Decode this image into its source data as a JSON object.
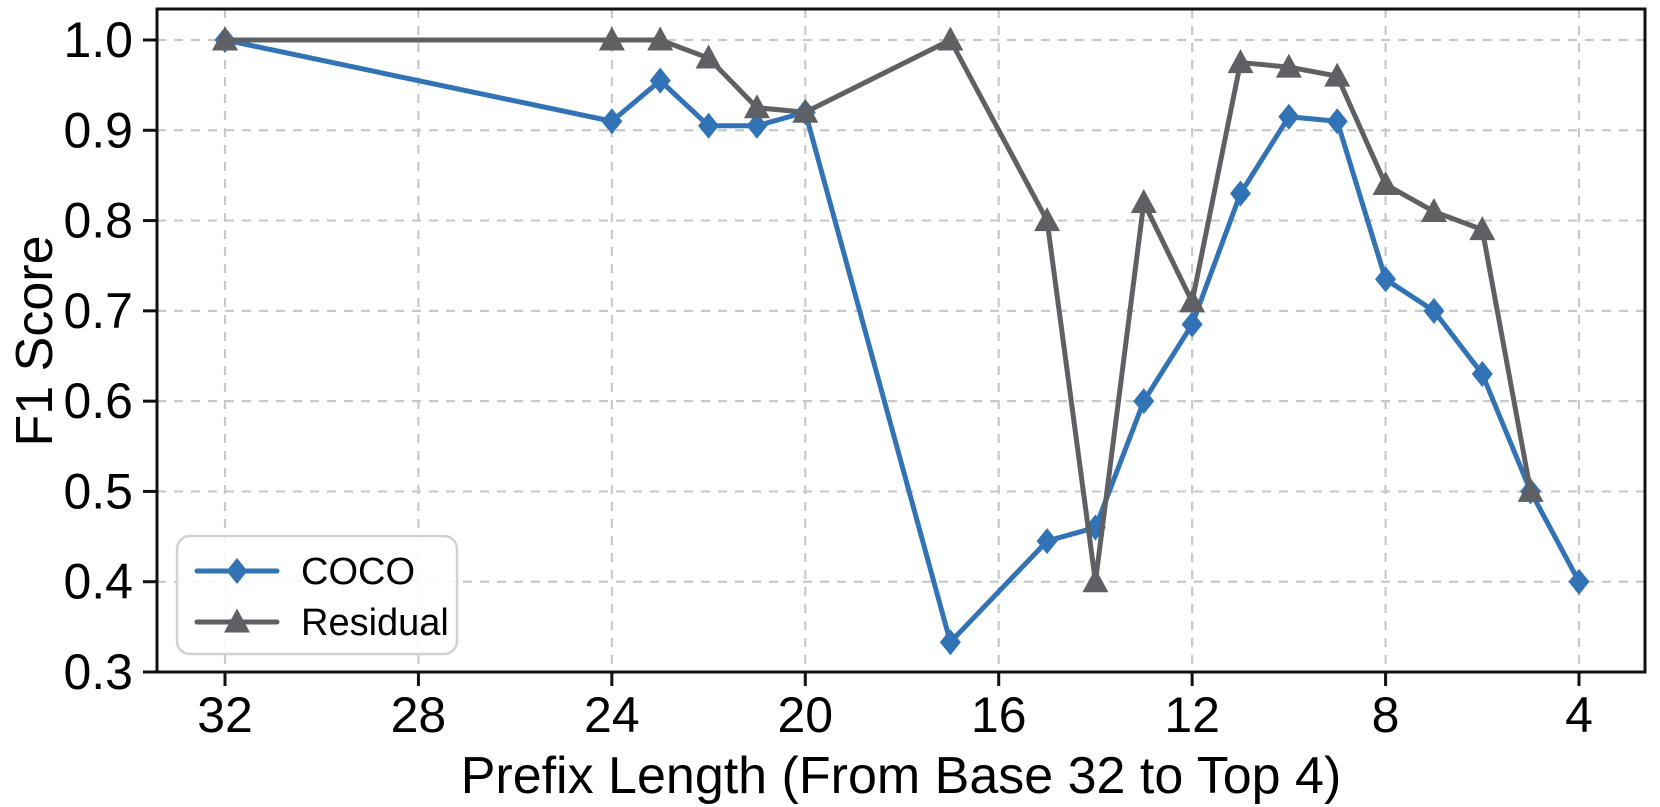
{
  "figure": {
    "xlabel": "Prefix Length (From Base 32 to Top 4)",
    "ylabel": "F1 Score",
    "background": "#ffffff"
  },
  "colors": {
    "coco_blue": "#3173b5",
    "residual_gray": "#5f6063",
    "grid": "#c9c9c9",
    "axis": "#111111",
    "legend_border": "#d2d2d2",
    "text": "#000000"
  },
  "legend": {
    "position": "lower-left",
    "items": [
      {
        "label": "COCO",
        "series": "COCO"
      },
      {
        "label": "Residual",
        "series": "Residual"
      }
    ]
  },
  "chart_data": {
    "type": "line",
    "title": "",
    "xlabel": "Prefix Length (From Base 32 to Top 4)",
    "ylabel": "F1 Score",
    "x_axis_reversed": true,
    "xlim": [
      33.4,
      2.7
    ],
    "ylim": [
      0.3,
      1.033
    ],
    "x_ticks": [
      32,
      28,
      24,
      20,
      16,
      12,
      8,
      4
    ],
    "y_ticks": [
      0.3,
      0.4,
      0.5,
      0.6,
      0.7,
      0.8,
      0.9,
      1.0
    ],
    "grid": true,
    "grid_style": "dashed",
    "legend_position": "lower left",
    "series": [
      {
        "name": "COCO",
        "color": "#3173b5",
        "marker": "diamond",
        "x": [
          32,
          24,
          23,
          22,
          21,
          20,
          17,
          15,
          14,
          13,
          12,
          11,
          10,
          9,
          8,
          7,
          6,
          5,
          4
        ],
        "y": [
          1.0,
          0.91,
          0.955,
          0.905,
          0.905,
          0.92,
          0.333,
          0.445,
          0.46,
          0.6,
          0.685,
          0.83,
          0.915,
          0.91,
          0.735,
          0.7,
          0.63,
          0.5,
          0.4
        ]
      },
      {
        "name": "Residual",
        "color": "#5f6063",
        "marker": "triangle",
        "x": [
          32,
          24,
          23,
          22,
          21,
          20,
          17,
          15,
          14,
          13,
          12,
          11,
          10,
          9,
          8,
          7,
          6,
          5
        ],
        "y": [
          1.0,
          1.0,
          1.0,
          0.98,
          0.925,
          0.92,
          1.0,
          0.8,
          0.4,
          0.82,
          0.71,
          0.975,
          0.97,
          0.96,
          0.84,
          0.81,
          0.79,
          0.5
        ]
      }
    ]
  }
}
